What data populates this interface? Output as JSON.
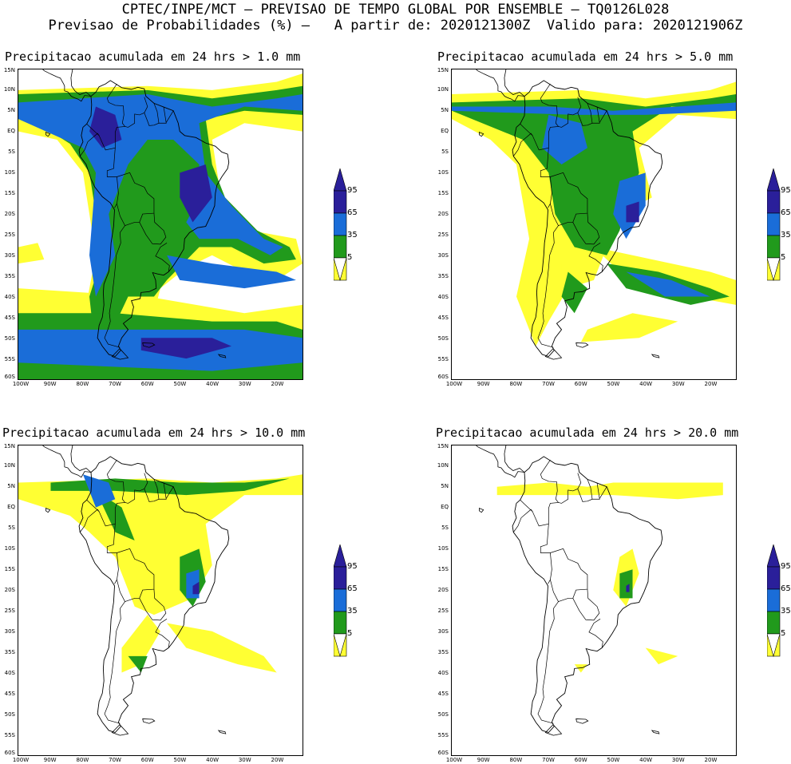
{
  "header": {
    "line1": "CPTEC/INPE/MCT – PREVISAO DE TEMPO GLOBAL POR ENSEMBLE – TQ0126L028",
    "line2": "Previsao de Probabilidades (%) –   A partir de: 2020121300Z  Valido para: 2020121906Z"
  },
  "lat_labels": [
    "15N",
    "10N",
    "5N",
    "EQ",
    "5S",
    "10S",
    "15S",
    "20S",
    "25S",
    "30S",
    "35S",
    "40S",
    "45S",
    "50S",
    "55S",
    "60S"
  ],
  "lon_labels": [
    "100W",
    "90W",
    "80W",
    "70W",
    "60W",
    "50W",
    "40W",
    "30W",
    "20W"
  ],
  "colorbar": {
    "labels": [
      "95",
      "65",
      "35",
      "5"
    ]
  },
  "colors": {
    "p5": "#ffff33",
    "p35": "#219a1c",
    "p65": "#1a6dd8",
    "p95": "#2a1f9a",
    "coast": "#000000"
  },
  "panels": [
    {
      "title": "Precipitacao acumulada em 24 hrs > 1.0 mm"
    },
    {
      "title": "Precipitacao acumulada em 24 hrs > 5.0 mm"
    },
    {
      "title": "Precipitacao acumulada em 24 hrs > 10.0 mm"
    },
    {
      "title": "Precipitacao acumulada em 24 hrs > 20.0 mm"
    }
  ]
}
